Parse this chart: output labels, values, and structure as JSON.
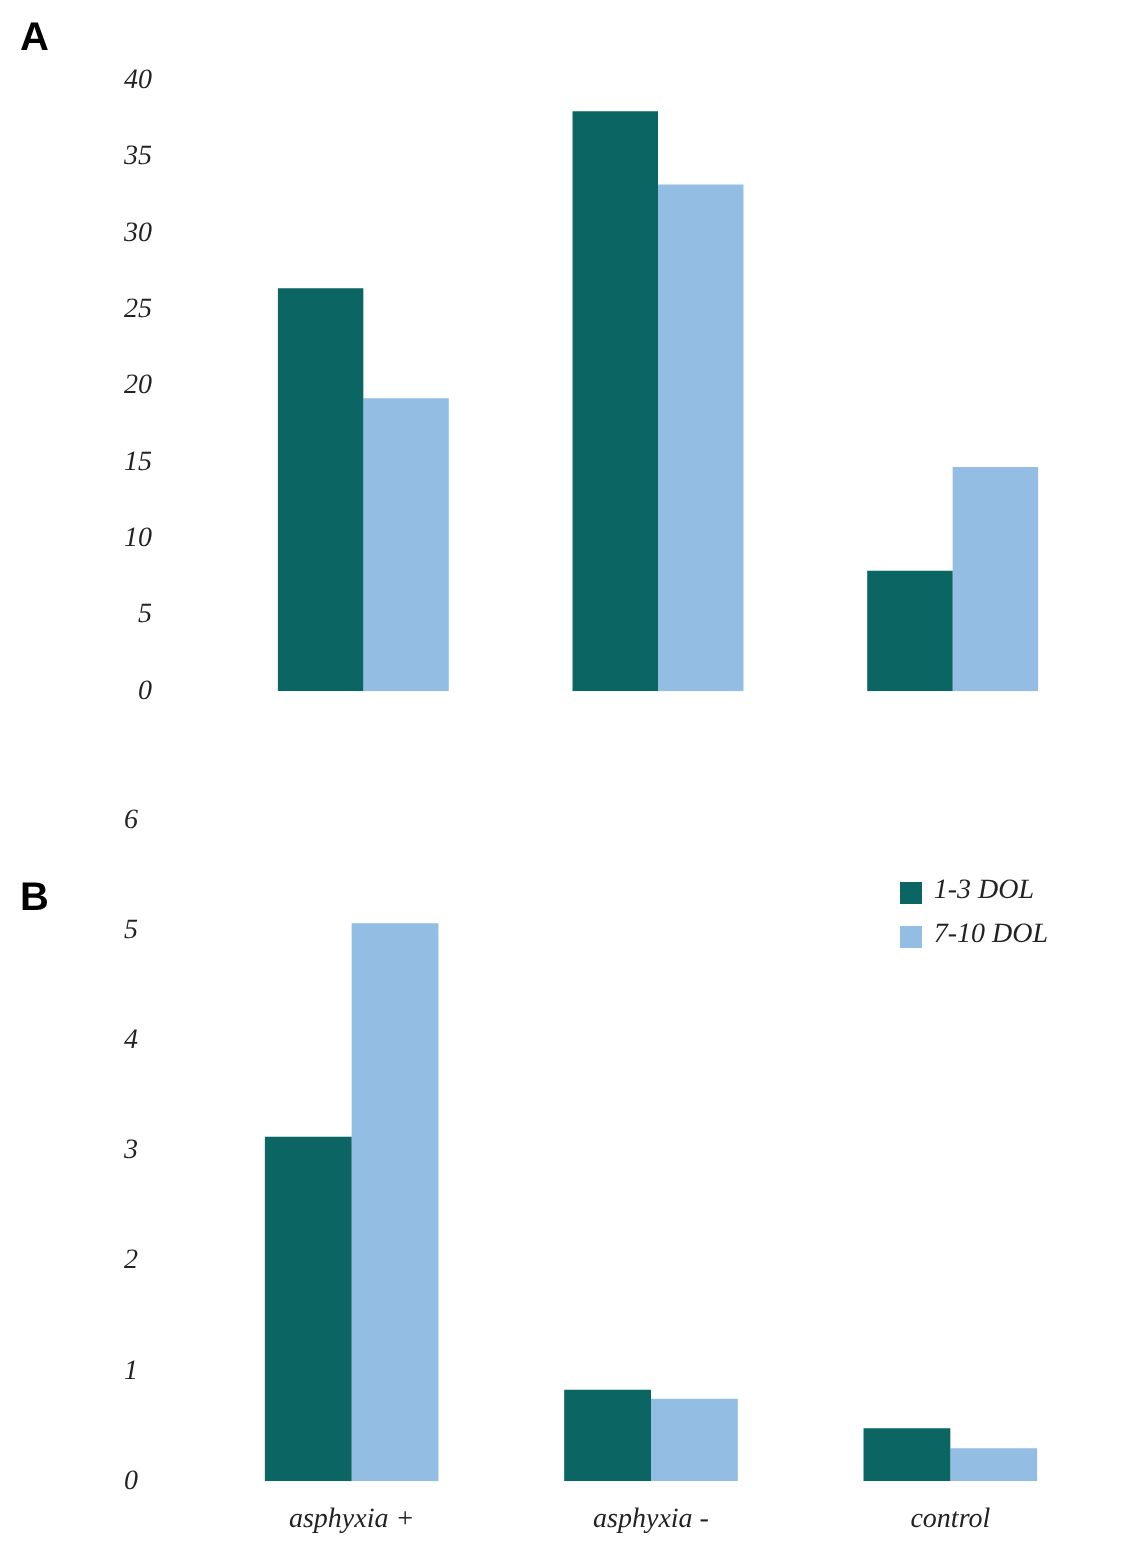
{
  "chart_data": [
    {
      "type": "bar",
      "title": "A",
      "categories": [
        null,
        null,
        null
      ],
      "tick_labels": "y",
      "ylim": [
        0,
        40
      ],
      "yticks": [
        0,
        5,
        10,
        15,
        20,
        25,
        30,
        35,
        40
      ],
      "grid": false,
      "legend": false,
      "series": [
        {
          "color": "#0b6663",
          "values": [
            26.4,
            38.0,
            7.9
          ]
        },
        {
          "color": "#93bde3",
          "values": [
            19.2,
            33.2,
            14.7
          ]
        }
      ]
    },
    {
      "type": "bar",
      "title": "B",
      "categories": [
        "asphyxia +",
        "asphyxia -",
        "control"
      ],
      "ylim": [
        0,
        6
      ],
      "yticks": [
        0,
        1,
        2,
        3,
        4,
        5,
        6
      ],
      "grid": false,
      "legend": "top right",
      "series": [
        {
          "name": "1-3 DOL",
          "color": "#0b6663",
          "values": [
            3.13,
            0.83,
            0.48
          ]
        },
        {
          "name": "7-10 DOL",
          "color": "#93bde3",
          "values": [
            5.07,
            0.75,
            0.3
          ]
        }
      ]
    }
  ]
}
